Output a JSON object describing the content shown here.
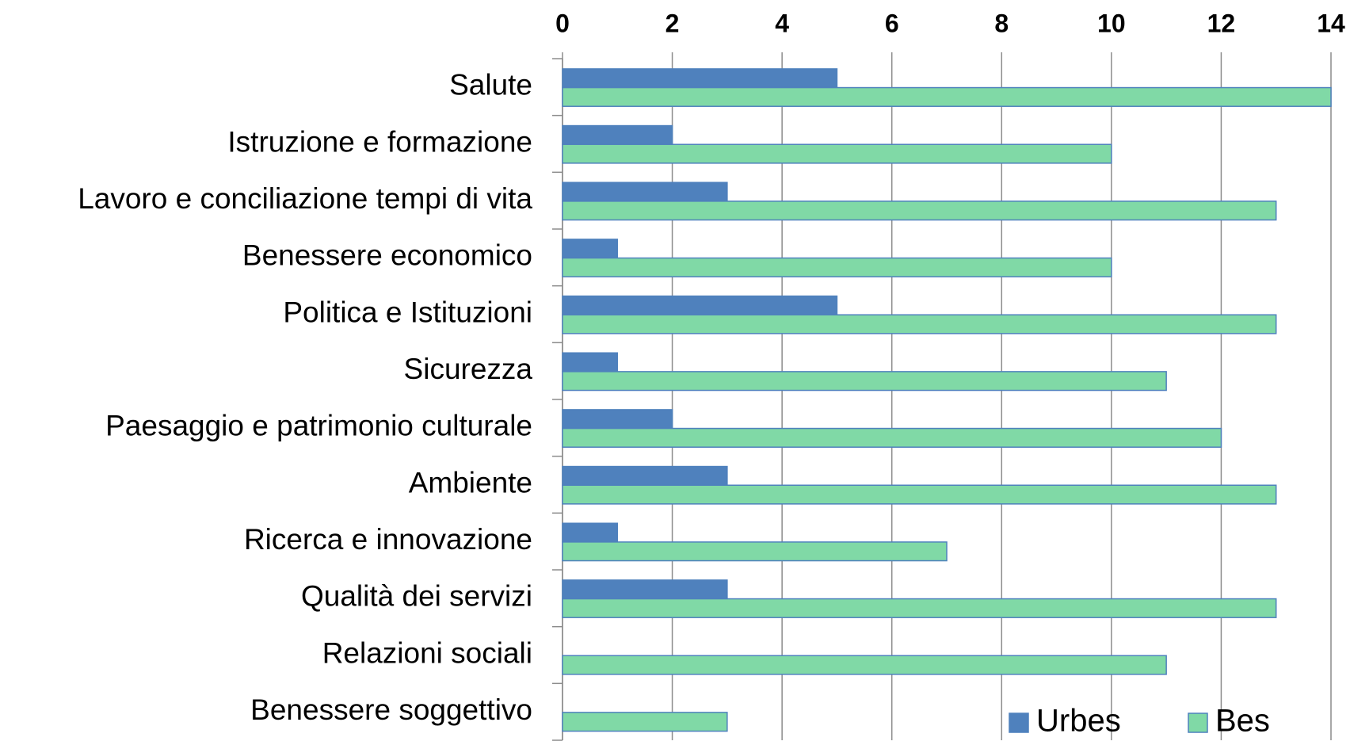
{
  "chart_data": {
    "type": "bar",
    "orientation": "horizontal",
    "categories": [
      "Salute",
      "Istruzione e formazione",
      "Lavoro e conciliazione tempi di vita",
      "Benessere economico",
      "Politica e Istituzioni",
      "Sicurezza",
      "Paesaggio e patrimonio culturale",
      "Ambiente",
      "Ricerca e innovazione",
      "Qualità dei servizi",
      "Relazioni sociali",
      "Benessere soggettivo"
    ],
    "series": [
      {
        "name": "Urbes",
        "color": "#4f81bd",
        "values": [
          5,
          2,
          3,
          1,
          5,
          1,
          2,
          3,
          1,
          3,
          0,
          0
        ]
      },
      {
        "name": "Bes",
        "color": "#80d9a6",
        "values": [
          14,
          10,
          13,
          10,
          13,
          11,
          12,
          13,
          7,
          13,
          11,
          3
        ]
      }
    ],
    "xlim": [
      0,
      14
    ],
    "xticks": [
      0,
      2,
      4,
      6,
      8,
      10,
      12,
      14
    ],
    "grid": true,
    "legend": "bottom-right"
  }
}
